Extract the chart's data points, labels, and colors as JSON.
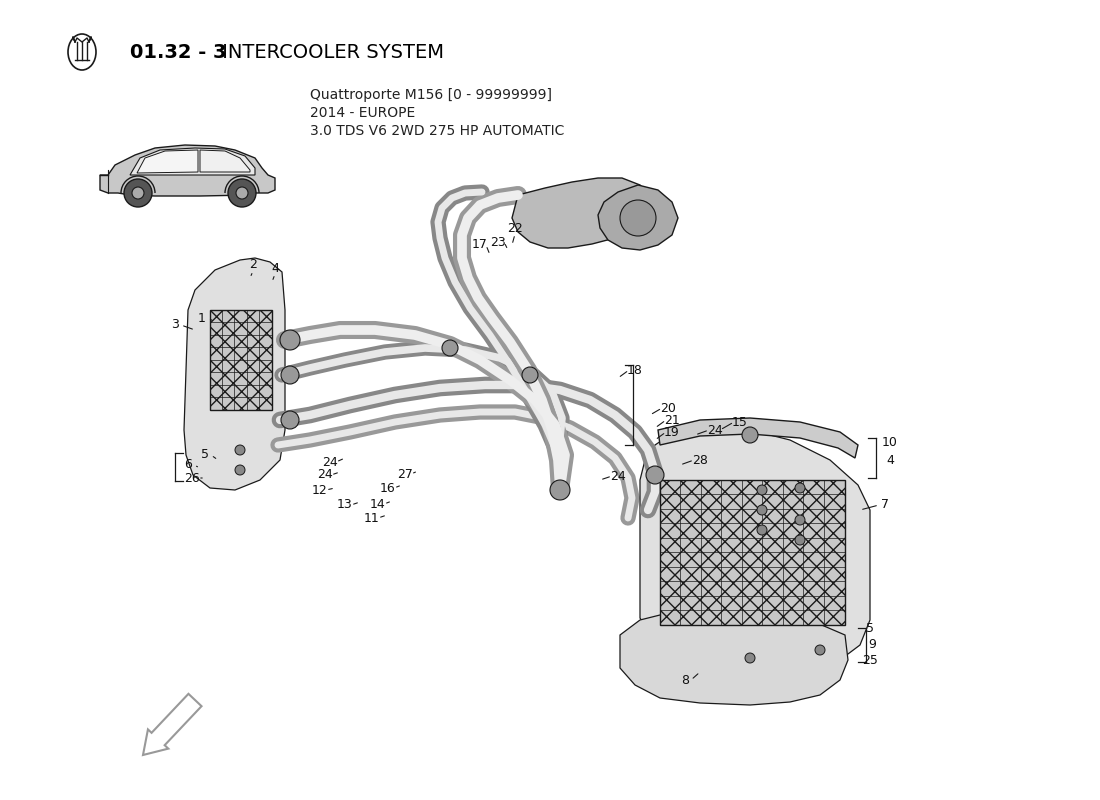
{
  "title_bold": "01.32 - 3",
  "title_regular": " INTERCOOLER SYSTEM",
  "subtitle1": "Quattroporte M156 [0 - 99999999]",
  "subtitle2": "2014 - EUROPE",
  "subtitle3": "3.0 TDS V6 2WD 275 HP AUTOMATIC",
  "bg_color": "#ffffff",
  "lc": "#1a1a1a",
  "gray": "#888888",
  "light_gray": "#dddddd",
  "mid_gray": "#aaaaaa"
}
